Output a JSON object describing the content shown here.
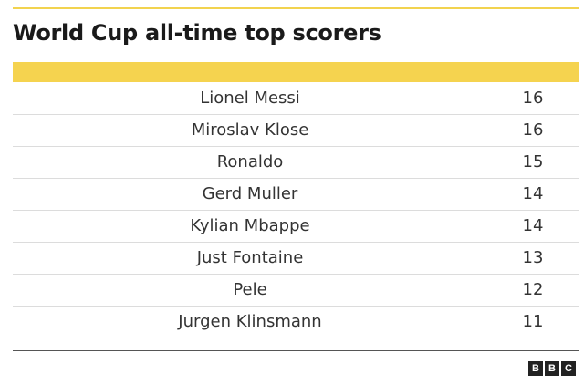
{
  "header": {
    "title": "World Cup all-time top scorers"
  },
  "table": {
    "rows": [
      [
        "Lionel Messi",
        16
      ],
      [
        "Miroslav Klose",
        16
      ],
      [
        "Ronaldo",
        15
      ],
      [
        "Gerd Muller",
        14
      ],
      [
        "Kylian Mbappe",
        14
      ],
      [
        "Just Fontaine",
        13
      ],
      [
        "Pele",
        12
      ],
      [
        "Jurgen Klinsmann",
        11
      ]
    ]
  },
  "footer": {
    "logo": [
      "B",
      "B",
      "C"
    ]
  }
}
